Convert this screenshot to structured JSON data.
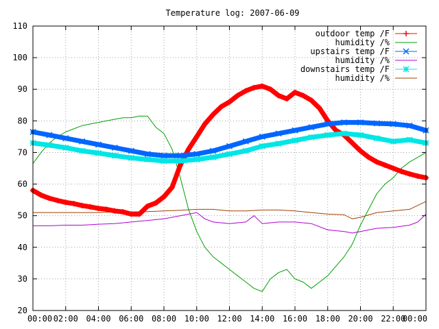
{
  "chart_data": {
    "type": "line",
    "title": "Temperature log: 2007-06-09",
    "xlabel": "",
    "ylabel": "",
    "xlim": [
      0,
      24
    ],
    "ylim": [
      20,
      110
    ],
    "grid": true,
    "legend_position": "top-right",
    "x_tick_labels": [
      "00:00",
      "02:00",
      "04:00",
      "06:00",
      "08:00",
      "10:00",
      "12:00",
      "14:00",
      "16:00",
      "18:00",
      "20:00",
      "22:00",
      "00:00"
    ],
    "x_ticks": [
      0,
      2,
      4,
      6,
      8,
      10,
      12,
      14,
      16,
      18,
      20,
      22,
      24
    ],
    "y_ticks": [
      20,
      30,
      40,
      50,
      60,
      70,
      80,
      90,
      100,
      110
    ],
    "y_tick_labels": [
      "20",
      "30",
      "40",
      "50",
      "60",
      "70",
      "80",
      "90",
      "100",
      "110"
    ],
    "series": [
      {
        "name": "outdoor temp /F",
        "color": "#ff0000",
        "marker": "plus",
        "points": [
          [
            0,
            58
          ],
          [
            0.5,
            56.5
          ],
          [
            1,
            55.5
          ],
          [
            1.5,
            54.8
          ],
          [
            2,
            54.2
          ],
          [
            2.5,
            53.8
          ],
          [
            3,
            53.2
          ],
          [
            3.5,
            52.8
          ],
          [
            4,
            52.3
          ],
          [
            4.5,
            52
          ],
          [
            5,
            51.5
          ],
          [
            5.5,
            51.2
          ],
          [
            6,
            50.5
          ],
          [
            6.5,
            50.5
          ],
          [
            7,
            53
          ],
          [
            7.5,
            54
          ],
          [
            8,
            56
          ],
          [
            8.5,
            59
          ],
          [
            9,
            66
          ],
          [
            9.5,
            71
          ],
          [
            10,
            75
          ],
          [
            10.5,
            79
          ],
          [
            11,
            82
          ],
          [
            11.5,
            84.5
          ],
          [
            12,
            86
          ],
          [
            12.5,
            88
          ],
          [
            13,
            89.5
          ],
          [
            13.5,
            90.5
          ],
          [
            14,
            91
          ],
          [
            14.5,
            90
          ],
          [
            15,
            88
          ],
          [
            15.5,
            87
          ],
          [
            16,
            89
          ],
          [
            16.5,
            88
          ],
          [
            17,
            86.5
          ],
          [
            17.5,
            84
          ],
          [
            18,
            80
          ],
          [
            18.5,
            77
          ],
          [
            19,
            75.5
          ],
          [
            19.5,
            73
          ],
          [
            20,
            70.5
          ],
          [
            20.5,
            68.5
          ],
          [
            21,
            67
          ],
          [
            21.5,
            66
          ],
          [
            22,
            65
          ],
          [
            22.5,
            64
          ],
          [
            23,
            63.2
          ],
          [
            23.5,
            62.5
          ],
          [
            24,
            62
          ]
        ]
      },
      {
        "name": "humidity /%",
        "color": "#00a000",
        "marker": "none",
        "points": [
          [
            0,
            66.5
          ],
          [
            0.5,
            70
          ],
          [
            1,
            73
          ],
          [
            1.5,
            75
          ],
          [
            2,
            76.5
          ],
          [
            2.5,
            77.5
          ],
          [
            3,
            78.5
          ],
          [
            3.5,
            79
          ],
          [
            4,
            79.5
          ],
          [
            4.5,
            80
          ],
          [
            5,
            80.5
          ],
          [
            5.5,
            81
          ],
          [
            6,
            81
          ],
          [
            6.5,
            81.5
          ],
          [
            7,
            81.5
          ],
          [
            7.5,
            78
          ],
          [
            8,
            76
          ],
          [
            8.5,
            71
          ],
          [
            9,
            62
          ],
          [
            9.5,
            52
          ],
          [
            10,
            45
          ],
          [
            10.5,
            40
          ],
          [
            11,
            37
          ],
          [
            11.5,
            35
          ],
          [
            12,
            33
          ],
          [
            12.5,
            31
          ],
          [
            13,
            29
          ],
          [
            13.5,
            27
          ],
          [
            14,
            26
          ],
          [
            14.5,
            30
          ],
          [
            15,
            32
          ],
          [
            15.5,
            33
          ],
          [
            16,
            30
          ],
          [
            16.5,
            29
          ],
          [
            17,
            27
          ],
          [
            17.5,
            29
          ],
          [
            18,
            31
          ],
          [
            18.5,
            34
          ],
          [
            19,
            37
          ],
          [
            19.5,
            41
          ],
          [
            20,
            47
          ],
          [
            20.5,
            52
          ],
          [
            21,
            57
          ],
          [
            21.5,
            60
          ],
          [
            22,
            62
          ],
          [
            22.5,
            65
          ],
          [
            23,
            67
          ],
          [
            23.5,
            68.5
          ],
          [
            24,
            70
          ]
        ]
      },
      {
        "name": "upstairs temp /F",
        "color": "#0066ff",
        "marker": "cross",
        "points": [
          [
            0,
            76.5
          ],
          [
            1,
            75.5
          ],
          [
            2,
            74.5
          ],
          [
            3,
            73.5
          ],
          [
            4,
            72.5
          ],
          [
            5,
            71.5
          ],
          [
            6,
            70.5
          ],
          [
            7,
            69.5
          ],
          [
            8,
            69
          ],
          [
            9,
            69
          ],
          [
            10,
            69.5
          ],
          [
            11,
            70.5
          ],
          [
            12,
            72
          ],
          [
            13,
            73.5
          ],
          [
            14,
            75
          ],
          [
            15,
            76
          ],
          [
            16,
            77
          ],
          [
            17,
            78
          ],
          [
            18,
            79
          ],
          [
            19,
            79.5
          ],
          [
            20,
            79.5
          ],
          [
            21,
            79.2
          ],
          [
            22,
            79
          ],
          [
            23,
            78.5
          ],
          [
            24,
            77
          ]
        ]
      },
      {
        "name": "humidity /%",
        "color": "#b000d0",
        "marker": "none",
        "points": [
          [
            0,
            46.8
          ],
          [
            1,
            46.8
          ],
          [
            2,
            47
          ],
          [
            3,
            47
          ],
          [
            4,
            47.3
          ],
          [
            5,
            47.5
          ],
          [
            6,
            48
          ],
          [
            7,
            48.5
          ],
          [
            8,
            49
          ],
          [
            9,
            50
          ],
          [
            10,
            51
          ],
          [
            10.5,
            49
          ],
          [
            11,
            48
          ],
          [
            12,
            47.5
          ],
          [
            13,
            48
          ],
          [
            13.5,
            50
          ],
          [
            14,
            47.5
          ],
          [
            15,
            48
          ],
          [
            16,
            48
          ],
          [
            17,
            47.5
          ],
          [
            18,
            45.5
          ],
          [
            19,
            45
          ],
          [
            19.5,
            44.5
          ],
          [
            20,
            45
          ],
          [
            21,
            46
          ],
          [
            22,
            46.3
          ],
          [
            23,
            47
          ],
          [
            23.5,
            48
          ],
          [
            24,
            50.5
          ]
        ]
      },
      {
        "name": "downstairs temp /F",
        "color": "#00e5e5",
        "marker": "star",
        "points": [
          [
            0,
            73
          ],
          [
            1,
            72.3
          ],
          [
            2,
            71.5
          ],
          [
            3,
            70.5
          ],
          [
            4,
            69.8
          ],
          [
            5,
            69
          ],
          [
            6,
            68.3
          ],
          [
            7,
            67.8
          ],
          [
            8,
            67.3
          ],
          [
            9,
            67.3
          ],
          [
            10,
            67.8
          ],
          [
            11,
            68.5
          ],
          [
            12,
            69.5
          ],
          [
            13,
            70.5
          ],
          [
            14,
            72
          ],
          [
            15,
            72.8
          ],
          [
            16,
            73.8
          ],
          [
            17,
            74.8
          ],
          [
            18,
            75.5
          ],
          [
            19,
            76
          ],
          [
            20,
            75.5
          ],
          [
            21,
            74.5
          ],
          [
            22,
            73.5
          ],
          [
            23,
            74
          ],
          [
            24,
            73
          ]
        ]
      },
      {
        "name": "humidity /%",
        "color": "#a04000",
        "marker": "none",
        "points": [
          [
            0,
            51
          ],
          [
            1,
            51
          ],
          [
            2,
            51
          ],
          [
            3,
            51
          ],
          [
            4,
            51
          ],
          [
            5,
            51.2
          ],
          [
            6,
            51.2
          ],
          [
            7,
            51.3
          ],
          [
            8,
            51.5
          ],
          [
            9,
            51.7
          ],
          [
            10,
            52
          ],
          [
            11,
            52
          ],
          [
            12,
            51.5
          ],
          [
            13,
            51.5
          ],
          [
            14,
            51.8
          ],
          [
            15,
            51.8
          ],
          [
            16,
            51.5
          ],
          [
            17,
            51
          ],
          [
            18,
            50.5
          ],
          [
            19,
            50.3
          ],
          [
            19.5,
            49
          ],
          [
            20,
            49.5
          ],
          [
            21,
            51
          ],
          [
            22,
            51.5
          ],
          [
            23,
            52
          ],
          [
            24,
            54.5
          ]
        ]
      }
    ]
  }
}
